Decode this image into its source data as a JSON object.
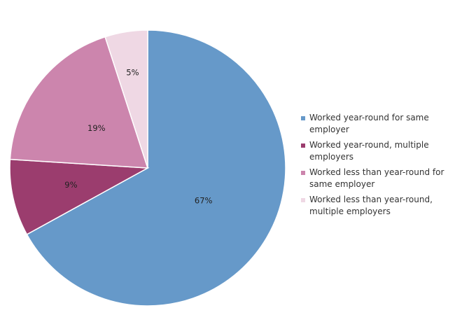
{
  "chart_data": {
    "type": "pie",
    "title": "",
    "slices": [
      {
        "label": "Worked year-round for same employer",
        "value": 67,
        "display": "67%",
        "color": "#6699c9"
      },
      {
        "label": "Worked year-round, multiple employers",
        "value": 9,
        "display": "9%",
        "color": "#9b3d6e"
      },
      {
        "label": "Worked less than year-round for same employer",
        "value": 19,
        "display": "19%",
        "color": "#cc85ad"
      },
      {
        "label": "Worked less than year-round, multiple employers",
        "value": 5,
        "display": "5%",
        "color": "#efd8e4"
      }
    ],
    "legend": {
      "position": "right",
      "items": [
        {
          "text": "Worked year-round for same\nemployer",
          "color": "#6699c9"
        },
        {
          "text": "Worked year-round, multiple\nemployers",
          "color": "#9b3d6e"
        },
        {
          "text": "Worked less than year-round for\nsame employer",
          "color": "#cc85ad"
        },
        {
          "text": "Worked less than year-round,\nmultiple employers",
          "color": "#efd8e4"
        }
      ]
    }
  }
}
